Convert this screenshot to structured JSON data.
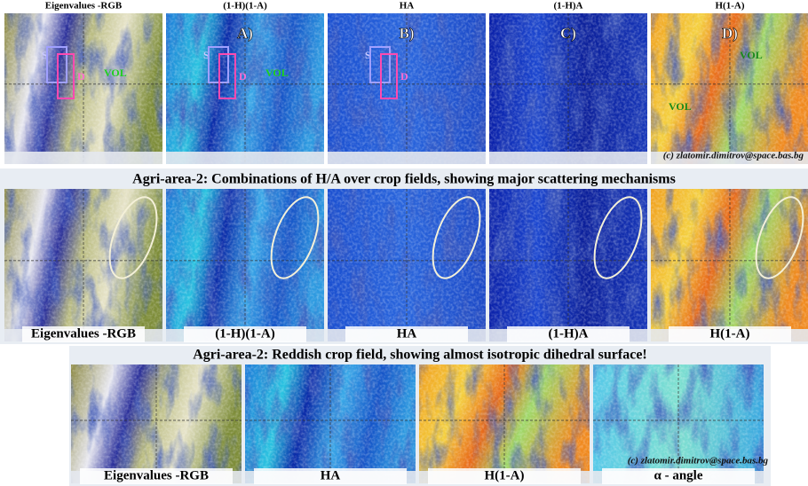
{
  "top_row": {
    "panels": [
      {
        "title": "Eigenvalues -RGB",
        "annotations": [
          "S",
          "D",
          "VOL"
        ]
      },
      {
        "title": "(1-H)(1-A)",
        "tag": "A)",
        "annotations": [
          "S",
          "D",
          "VOL"
        ]
      },
      {
        "title": "HA",
        "tag": "B)",
        "annotations": [
          "S",
          "D"
        ]
      },
      {
        "title": "(1-H)A",
        "tag": "C)"
      },
      {
        "title": "H(1-A)",
        "tag": "D)",
        "annotations": [
          "VOL",
          "VOL"
        ]
      }
    ],
    "credit": "(c) zlatomir.dimitrov@space.bas.bg"
  },
  "middle_row": {
    "title": "Agri-area-2: Combinations of H/A over crop fields, showing major scattering mechanisms",
    "panels": [
      "Eigenvalues -RGB",
      "(1-H)(1-A)",
      "HA",
      "(1-H)A",
      "H(1-A)"
    ]
  },
  "bottom_row": {
    "title": "Agri-area-2: Reddish crop field, showing almost isotropic dihedral surface!",
    "panels": [
      "Eigenvalues -RGB",
      "HA",
      "H(1-A)",
      "α - angle"
    ],
    "credit": "(c) zlatomir.dimitrov@space.bas.bg"
  }
}
